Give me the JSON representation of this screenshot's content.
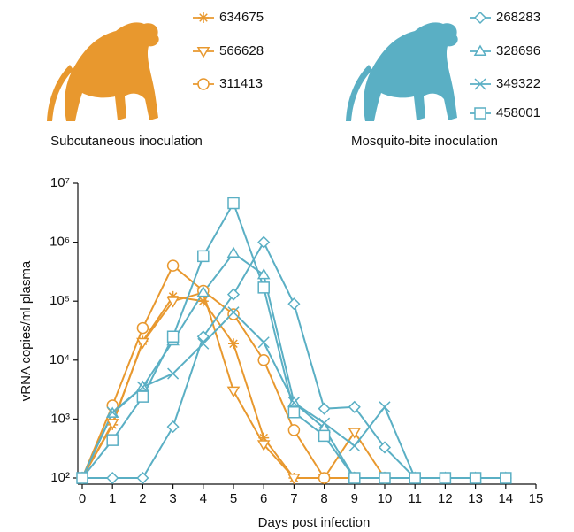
{
  "chart_data": {
    "type": "line",
    "annotations": [
      "Subcutaneous inoculation",
      "Mosquito-bite inoculation"
    ],
    "x_label": "Days post infection",
    "y_label": "vRNA copies/ml plasma",
    "x": [
      0,
      1,
      2,
      3,
      4,
      5,
      6,
      7,
      8,
      9,
      10,
      11,
      12,
      13,
      14
    ],
    "xlim": [
      0,
      15
    ],
    "xticks": [
      0,
      1,
      2,
      3,
      4,
      5,
      6,
      7,
      8,
      9,
      10,
      11,
      12,
      13,
      14,
      15
    ],
    "ylim": [
      100,
      10000000
    ],
    "yscale": "log",
    "yticks": [
      {
        "value": 100,
        "label": "10²"
      },
      {
        "value": 1000,
        "label": "10³"
      },
      {
        "value": 10000,
        "label": "10⁴"
      },
      {
        "value": 100000,
        "label": "10⁵"
      },
      {
        "value": 1000000,
        "label": "10⁶"
      },
      {
        "value": 10000000,
        "label": "10⁷"
      }
    ],
    "series": [
      {
        "name": "634675",
        "color": "#e8982e",
        "marker": "asterisk",
        "values": [
          100,
          800,
          21000,
          120000,
          100000,
          19000,
          480,
          100,
          100,
          100,
          100,
          null,
          null,
          null,
          null
        ]
      },
      {
        "name": "566628",
        "color": "#e8982e",
        "marker": "triangle-down",
        "values": [
          100,
          850,
          20000,
          100000,
          140000,
          3000,
          370,
          100,
          100,
          600,
          100,
          null,
          null,
          null,
          null
        ]
      },
      {
        "name": "311413",
        "color": "#e8982e",
        "marker": "circle",
        "values": [
          100,
          1700,
          35000,
          400000,
          150000,
          60000,
          10000,
          650,
          100,
          100,
          100,
          null,
          null,
          null,
          null
        ]
      },
      {
        "name": "268283",
        "color": "#5aafc4",
        "marker": "diamond",
        "values": [
          100,
          100,
          100,
          740,
          25000,
          130000,
          1000000,
          90000,
          1500,
          1600,
          330,
          100,
          100,
          100,
          100
        ]
      },
      {
        "name": "328696",
        "color": "#5aafc4",
        "marker": "triangle-up",
        "values": [
          100,
          1250,
          3500,
          21000,
          140000,
          650000,
          280000,
          1900,
          700,
          100,
          100,
          100,
          100,
          100,
          100
        ]
      },
      {
        "name": "349322",
        "color": "#5aafc4",
        "marker": "x",
        "values": [
          100,
          1300,
          3500,
          5900,
          19000,
          65000,
          20000,
          1900,
          850,
          350,
          1600,
          100,
          100,
          100,
          100
        ]
      },
      {
        "name": "458001",
        "color": "#5aafc4",
        "marker": "square",
        "values": [
          100,
          440,
          2400,
          25000,
          580000,
          4600000,
          170000,
          1300,
          520,
          100,
          100,
          100,
          100,
          100,
          100
        ]
      }
    ]
  }
}
